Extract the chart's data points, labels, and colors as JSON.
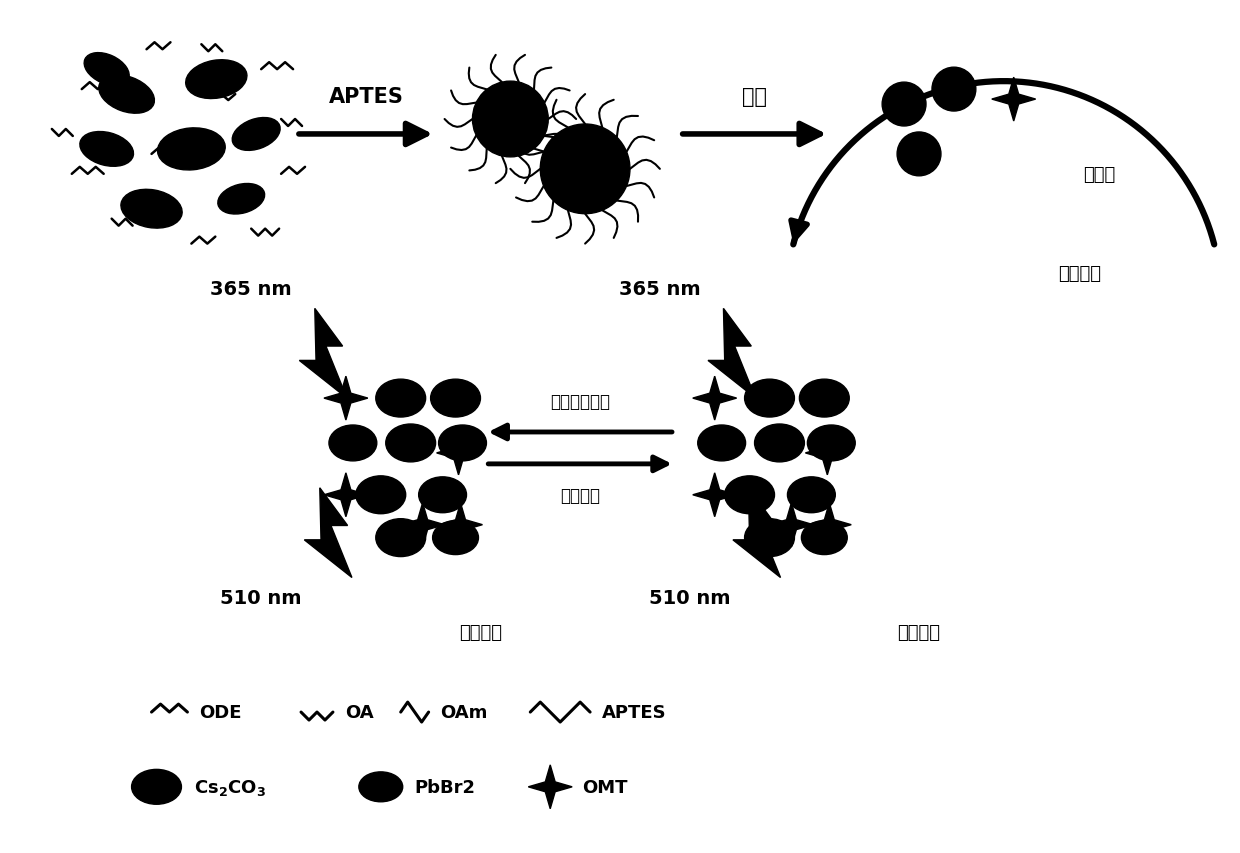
{
  "bg_color": "#ffffff",
  "text_color": "#000000",
  "figsize": [
    12.4,
    8.54
  ],
  "dpi": 100,
  "labels": {
    "aptes_arrow": "APTES",
    "hydrolysis_arrow": "水解",
    "polymerization": "聚合反应",
    "crosslinker": "交联剂",
    "wash": "洗脱模版分子",
    "rebind": "重新绑定",
    "nm365_left": "365 nm",
    "nm365_right": "365 nm",
    "nm510_left": "510 nm",
    "nm510_right": "510 nm",
    "fluor_recover": "荧光恢复",
    "fluor_quench": "荧光淡灯",
    "legend_ode": "ODE",
    "legend_oa": "OA",
    "legend_oam": "OAm",
    "legend_aptes": "APTES",
    "legend_cs2co3": "Cs₂CO₃",
    "legend_pbbr2": "PbBr2",
    "legend_omt": "OMT"
  }
}
